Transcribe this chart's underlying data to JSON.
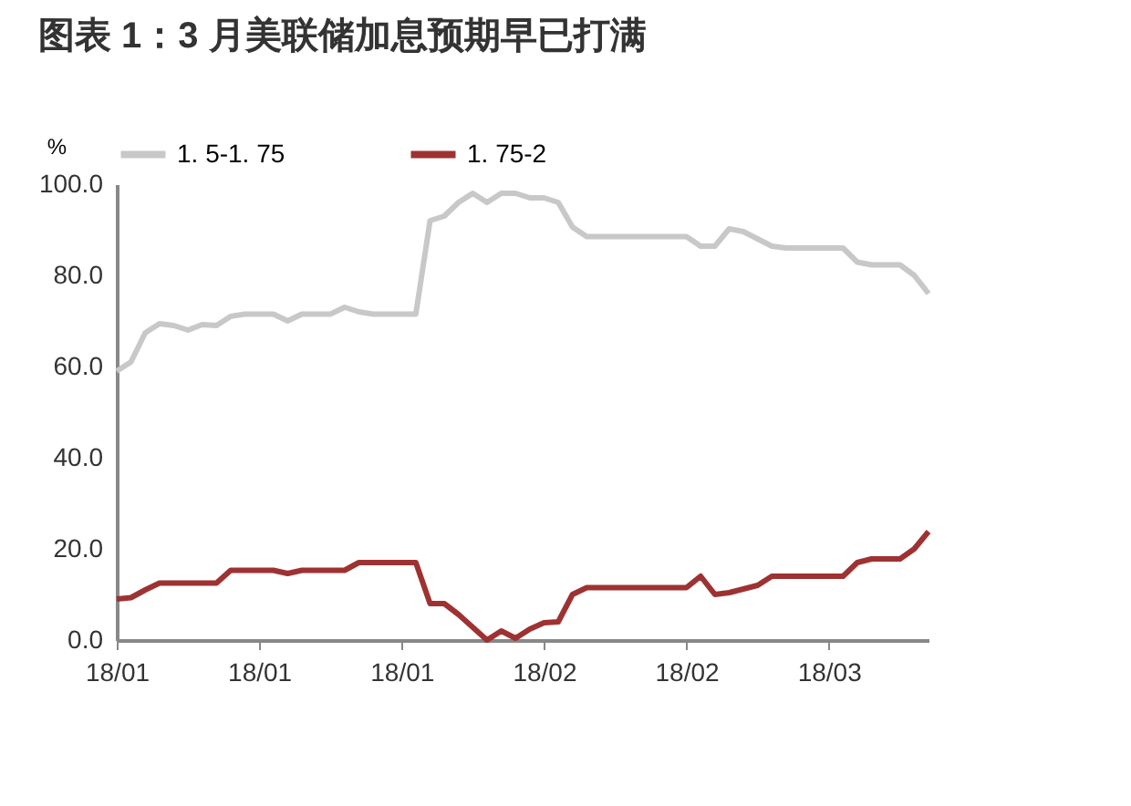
{
  "chart_data": {
    "type": "line",
    "title": "图表 1：3 月美联储加息预期早已打满",
    "ylabel": "%",
    "categories": [
      "18/01",
      null,
      null,
      null,
      null,
      null,
      null,
      null,
      null,
      null,
      "18/01",
      null,
      null,
      null,
      null,
      null,
      null,
      null,
      null,
      null,
      "18/01",
      null,
      null,
      null,
      null,
      null,
      null,
      null,
      null,
      null,
      "18/02",
      null,
      null,
      null,
      null,
      null,
      null,
      null,
      null,
      null,
      "18/02",
      null,
      null,
      null,
      null,
      null,
      null,
      null,
      null,
      null,
      "18/03",
      null,
      null,
      null,
      null,
      null,
      null,
      null
    ],
    "series": [
      {
        "name": "1. 5-1. 75",
        "color": "#c8c8c8",
        "values": [
          59,
          61,
          67.4,
          69.4,
          69,
          68,
          69.2,
          69,
          71,
          71.5,
          71.5,
          71.5,
          70,
          71.5,
          71.5,
          71.5,
          73,
          72,
          71.5,
          71.5,
          71.5,
          71.5,
          92,
          93,
          96,
          98,
          96,
          98,
          98,
          97,
          97,
          96,
          90.6,
          88.5,
          88.5,
          88.5,
          88.5,
          88.5,
          88.5,
          88.5,
          88.5,
          86.4,
          86.4,
          90.2,
          89.6,
          88,
          86.4,
          86,
          86,
          86,
          86,
          86,
          82.9,
          82.3,
          82.3,
          82.3,
          80,
          76
        ]
      },
      {
        "name": "1. 75-2",
        "color": "#9e3232",
        "values": [
          9,
          9.3,
          11,
          12.5,
          12.5,
          12.5,
          12.5,
          12.5,
          15.3,
          15.3,
          15.3,
          15.3,
          14.6,
          15.3,
          15.3,
          15.3,
          15.3,
          17,
          17,
          17,
          17,
          17,
          8,
          8,
          5.6,
          2.8,
          0,
          2,
          0.4,
          2.4,
          3.8,
          4,
          10,
          11.5,
          11.5,
          11.5,
          11.5,
          11.5,
          11.5,
          11.5,
          11.5,
          14,
          10,
          10.4,
          11.2,
          12,
          14,
          14,
          14,
          14,
          14,
          14,
          17,
          17.8,
          17.8,
          17.8,
          20,
          23.8
        ]
      }
    ],
    "ylim": [
      0,
      100
    ],
    "yticks": [
      {
        "value": 0,
        "label": "0.0"
      },
      {
        "value": 20,
        "label": "20.0"
      },
      {
        "value": 40,
        "label": "40.0"
      },
      {
        "value": 60,
        "label": "60.0"
      },
      {
        "value": 80,
        "label": "80.0"
      },
      {
        "value": 100,
        "label": "100.0"
      }
    ],
    "legend": "top",
    "grid": false,
    "marker": "none",
    "line_style": "solid"
  }
}
